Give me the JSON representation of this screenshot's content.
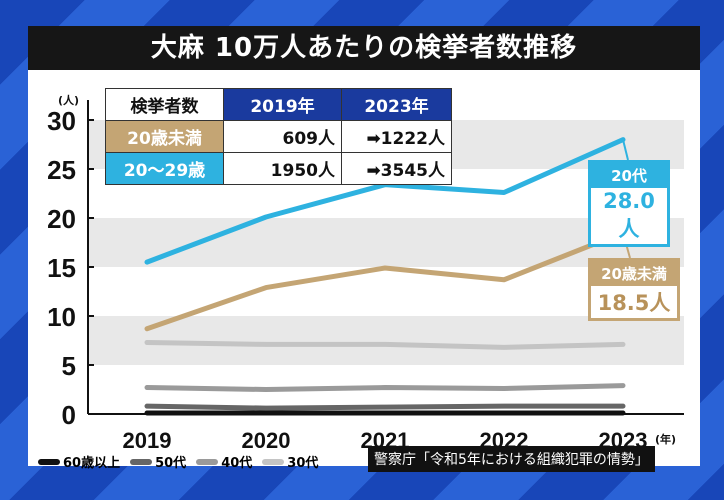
{
  "title": "大麻 10万人あたりの検挙者数推移",
  "table": {
    "header": [
      "検挙者数",
      "2019年",
      "2023年"
    ],
    "rows": [
      {
        "label": "20歳未満",
        "v2019": "609人",
        "v2023": "➡1222人"
      },
      {
        "label": "20〜29歳",
        "v2019": "1950人",
        "v2023": "➡3545人"
      }
    ]
  },
  "callouts": {
    "twenties": {
      "label": "20代",
      "value": "28.0人"
    },
    "under20": {
      "label": "20歳未満",
      "value": "18.5人"
    }
  },
  "source": "警察庁「令和5年における組織犯罪の情勢」",
  "colors": {
    "twenties": "#2eb2e0",
    "under20": "#c4a574",
    "thirties": "#c4c4c4",
    "forties": "#9a9a9a",
    "fifties": "#666666",
    "sixties": "#111111"
  },
  "chart_data": {
    "type": "line",
    "title": "大麻 10万人あたりの検挙者数推移",
    "ylabel": "(人)",
    "xlabel": "(年)",
    "x": [
      "2019",
      "2020",
      "2021",
      "2022",
      "2023"
    ],
    "ylim": [
      0,
      30
    ],
    "yticks": [
      "0",
      "5",
      "10",
      "15",
      "20",
      "25",
      "30"
    ],
    "series": [
      {
        "name": "20代",
        "values": [
          15.5,
          20.1,
          23.4,
          22.6,
          28.0
        ]
      },
      {
        "name": "20歳未満",
        "values": [
          8.7,
          12.9,
          14.9,
          13.7,
          18.5
        ]
      },
      {
        "name": "30代",
        "values": [
          7.3,
          7.1,
          7.1,
          6.8,
          7.1
        ]
      },
      {
        "name": "40代",
        "values": [
          2.7,
          2.5,
          2.7,
          2.6,
          2.9
        ]
      },
      {
        "name": "50代",
        "values": [
          0.8,
          0.6,
          0.7,
          0.8,
          0.8
        ]
      },
      {
        "name": "60歳以上",
        "values": [
          0.1,
          0.1,
          0.1,
          0.1,
          0.1
        ]
      }
    ],
    "legend": [
      "60歳以上",
      "50代",
      "40代",
      "30代"
    ]
  }
}
